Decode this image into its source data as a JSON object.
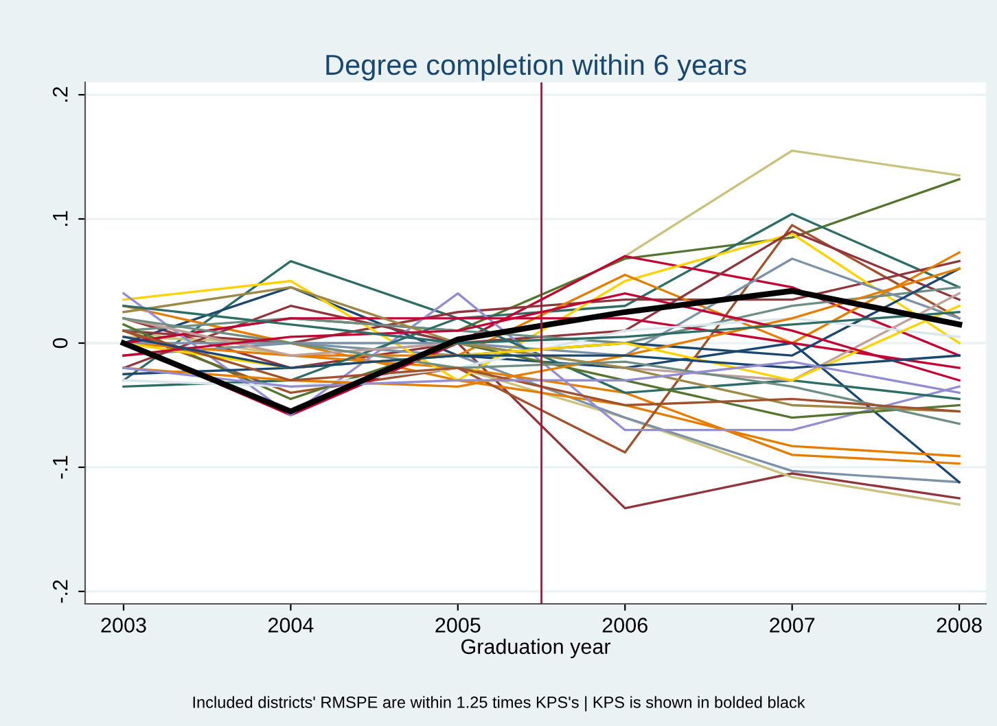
{
  "chart_data": {
    "type": "line",
    "title": "Degree completion within 6 years",
    "xlabel": "Graduation year",
    "x": [
      2003,
      2004,
      2005,
      2006,
      2007,
      2008
    ],
    "xlim": [
      2002.77,
      2008.16
    ],
    "xticks": [
      2003,
      2004,
      2005,
      2006,
      2007,
      2008
    ],
    "ylim": [
      -0.21,
      0.21
    ],
    "yticks": [
      {
        "value": -0.2,
        "label": "-.2"
      },
      {
        "value": -0.1,
        "label": "-.1"
      },
      {
        "value": 0,
        "label": "0"
      },
      {
        "value": 0.1,
        "label": ".1"
      },
      {
        "value": 0.2,
        "label": ".2"
      }
    ],
    "grid": "y",
    "legend": false,
    "marker": "none",
    "line_style": "solid",
    "ref_lines": [
      {
        "axis": "x",
        "value": 2005.5,
        "color": "#c10534"
      }
    ],
    "annotations": [
      "Included districts' RMSPE are within 1.25 times KPS's | KPS is shown in bolded black"
    ],
    "series": [
      {
        "color": "#cac27e",
        "values": [
          0.01,
          -0.01,
          0.0,
          0.07,
          0.155,
          0.135
        ]
      },
      {
        "color": "#55752f",
        "values": [
          0.0,
          0.02,
          0.01,
          0.068,
          0.085,
          0.132
        ]
      },
      {
        "color": "#2d6d66",
        "values": [
          -0.03,
          0.066,
          0.02,
          0.03,
          0.104,
          0.045
        ]
      },
      {
        "color": "#90353b",
        "values": [
          0.02,
          -0.02,
          0.0,
          -0.133,
          -0.105,
          -0.125
        ]
      },
      {
        "color": "#cac27e",
        "values": [
          0.005,
          0.0,
          -0.02,
          -0.06,
          -0.108,
          -0.13
        ]
      },
      {
        "color": "#7b92a8",
        "values": [
          -0.01,
          0.0,
          -0.01,
          -0.06,
          -0.103,
          -0.112
        ]
      },
      {
        "color": "#1a476f",
        "values": [
          0.0,
          0.045,
          -0.01,
          -0.02,
          0.0,
          -0.112
        ]
      },
      {
        "color": "#e37e00",
        "values": [
          0.03,
          0.0,
          -0.03,
          -0.05,
          -0.083,
          -0.091
        ]
      },
      {
        "color": "#e37e00",
        "values": [
          0.02,
          -0.01,
          -0.02,
          -0.04,
          -0.09,
          -0.097
        ]
      },
      {
        "color": "#a0522d",
        "values": [
          0.01,
          -0.04,
          -0.02,
          -0.088,
          0.095,
          0.02
        ]
      },
      {
        "color": "#c10534",
        "values": [
          0.0,
          -0.058,
          0.0,
          0.07,
          0.045,
          -0.01
        ]
      },
      {
        "color": "#90353b",
        "values": [
          0.01,
          0.0,
          0.025,
          0.035,
          0.035,
          0.066
        ]
      },
      {
        "color": "#ffd200",
        "values": [
          0.035,
          0.05,
          -0.03,
          0.05,
          0.088,
          0.0
        ]
      },
      {
        "color": "#e37e00",
        "values": [
          0.0,
          -0.01,
          -0.01,
          0.055,
          0.0,
          0.073
        ]
      },
      {
        "color": "#90353b",
        "values": [
          -0.02,
          0.03,
          0.0,
          0.01,
          0.09,
          0.035
        ]
      },
      {
        "color": "#938dd2",
        "values": [
          0.04,
          -0.058,
          0.04,
          -0.07,
          -0.07,
          -0.035
        ]
      },
      {
        "color": "#6e8e84",
        "values": [
          0.01,
          0.02,
          0.01,
          0.0,
          0.03,
          0.045
        ]
      },
      {
        "color": "#7b92a8",
        "values": [
          0.0,
          0.0,
          0.0,
          -0.01,
          0.068,
          0.02
        ]
      },
      {
        "color": "#2d6d66",
        "values": [
          -0.035,
          -0.03,
          0.02,
          -0.04,
          -0.03,
          -0.045
        ]
      },
      {
        "color": "#55752f",
        "values": [
          0.015,
          -0.045,
          0.0,
          -0.03,
          -0.06,
          -0.05
        ]
      },
      {
        "color": "#c10534",
        "values": [
          0.0,
          0.02,
          0.02,
          0.02,
          0.0,
          -0.02
        ]
      },
      {
        "color": "#1a476f",
        "values": [
          -0.025,
          -0.02,
          -0.01,
          0.0,
          -0.01,
          0.06
        ]
      },
      {
        "color": "#bfa19c",
        "values": [
          0.02,
          -0.01,
          0.0,
          -0.02,
          -0.03,
          0.04
        ]
      },
      {
        "color": "#d9e6eb",
        "values": [
          -0.03,
          -0.035,
          -0.02,
          0.01,
          0.02,
          0.005
        ]
      },
      {
        "color": "#9c8847",
        "values": [
          0.025,
          0.045,
          0.0,
          -0.02,
          -0.05,
          -0.055
        ]
      },
      {
        "color": "#e37e00",
        "values": [
          -0.02,
          -0.03,
          -0.035,
          -0.01,
          0.02,
          0.06
        ]
      },
      {
        "color": "#ffd200",
        "values": [
          0.0,
          -0.02,
          -0.01,
          0.0,
          -0.03,
          0.03
        ]
      },
      {
        "color": "#6e8e84",
        "values": [
          0.02,
          0.0,
          -0.02,
          -0.015,
          -0.035,
          -0.065
        ]
      },
      {
        "color": "#c10534",
        "values": [
          -0.01,
          0.005,
          0.01,
          0.04,
          0.01,
          -0.03
        ]
      },
      {
        "color": "#a0522d",
        "values": [
          0.01,
          -0.03,
          -0.02,
          -0.05,
          -0.045,
          -0.055
        ]
      },
      {
        "color": "#1a476f",
        "values": [
          0.005,
          -0.02,
          -0.01,
          -0.01,
          -0.02,
          -0.01
        ]
      },
      {
        "color": "#938dd2",
        "values": [
          -0.02,
          -0.035,
          -0.03,
          -0.03,
          -0.015,
          -0.04
        ]
      },
      {
        "color": "#2d6d66",
        "values": [
          0.03,
          0.015,
          0.0,
          0.005,
          0.015,
          0.025
        ]
      },
      {
        "color": "#000000",
        "values": [
          0.0,
          -0.055,
          0.003,
          0.025,
          0.042,
          0.015
        ]
      }
    ]
  }
}
